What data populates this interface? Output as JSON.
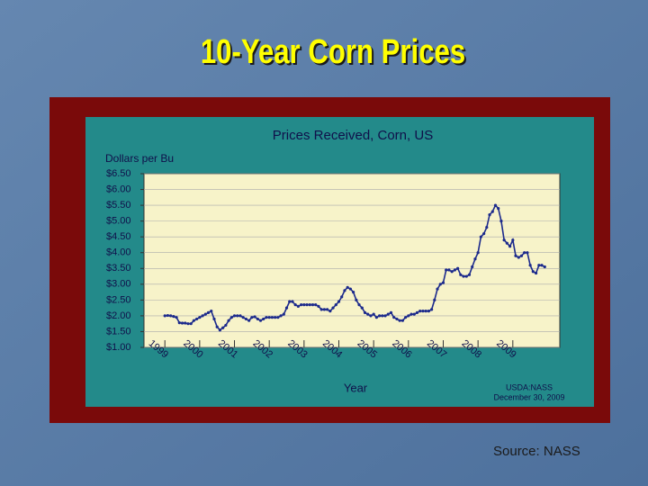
{
  "title": "10-Year Corn Prices",
  "source": "Source: NASS",
  "chart_data": {
    "type": "line",
    "title": "Prices Received, Corn, US",
    "y_label": "Dollars per Bu",
    "x_label": "Year",
    "notes": [
      "USDA:NASS",
      "December 30, 2009"
    ],
    "xlim": [
      1998.4,
      2010.35
    ],
    "xticks": [
      1999,
      2000,
      2001,
      2002,
      2003,
      2004,
      2005,
      2006,
      2007,
      2008,
      2009
    ],
    "ylim": [
      1,
      6.5
    ],
    "yticks": [
      {
        "value": 6.5,
        "label": "$6.50"
      },
      {
        "value": 6,
        "label": "$6.00"
      },
      {
        "value": 5.5,
        "label": "$5.50"
      },
      {
        "value": 5,
        "label": "$5.00"
      },
      {
        "value": 4.5,
        "label": "$4.50"
      },
      {
        "value": 4,
        "label": "$4.00"
      },
      {
        "value": 3.5,
        "label": "$3.50"
      },
      {
        "value": 3,
        "label": "$3.00"
      },
      {
        "value": 2.5,
        "label": "$2.50"
      },
      {
        "value": 2,
        "label": "$2.00"
      },
      {
        "value": 1.5,
        "label": "$1.50"
      },
      {
        "value": 1,
        "label": "$1.00"
      }
    ],
    "grid": true,
    "x": [
      1999,
      1999.083,
      1999.167,
      1999.25,
      1999.333,
      1999.417,
      1999.5,
      1999.583,
      1999.667,
      1999.75,
      1999.833,
      1999.917,
      2000,
      2000.083,
      2000.167,
      2000.25,
      2000.333,
      2000.417,
      2000.5,
      2000.583,
      2000.667,
      2000.75,
      2000.833,
      2000.917,
      2001,
      2001.083,
      2001.167,
      2001.25,
      2001.333,
      2001.417,
      2001.5,
      2001.583,
      2001.667,
      2001.75,
      2001.833,
      2001.917,
      2002,
      2002.083,
      2002.167,
      2002.25,
      2002.333,
      2002.417,
      2002.5,
      2002.583,
      2002.667,
      2002.75,
      2002.833,
      2002.917,
      2003,
      2003.083,
      2003.167,
      2003.25,
      2003.333,
      2003.417,
      2003.5,
      2003.583,
      2003.667,
      2003.75,
      2003.833,
      2003.917,
      2004,
      2004.083,
      2004.167,
      2004.25,
      2004.333,
      2004.417,
      2004.5,
      2004.583,
      2004.667,
      2004.75,
      2004.833,
      2004.917,
      2005,
      2005.083,
      2005.167,
      2005.25,
      2005.333,
      2005.417,
      2005.5,
      2005.583,
      2005.667,
      2005.75,
      2005.833,
      2005.917,
      2006,
      2006.083,
      2006.167,
      2006.25,
      2006.333,
      2006.417,
      2006.5,
      2006.583,
      2006.667,
      2006.75,
      2006.833,
      2006.917,
      2007,
      2007.083,
      2007.167,
      2007.25,
      2007.333,
      2007.417,
      2007.5,
      2007.583,
      2007.667,
      2007.75,
      2007.833,
      2007.917,
      2008,
      2008.083,
      2008.167,
      2008.25,
      2008.333,
      2008.417,
      2008.5,
      2008.583,
      2008.667,
      2008.75,
      2008.833,
      2008.917,
      2009,
      2009.083,
      2009.167,
      2009.25,
      2009.333,
      2009.417,
      2009.5,
      2009.583,
      2009.667,
      2009.75,
      2009.833,
      2009.917
    ],
    "series": [
      {
        "color": "#1c2a8c",
        "values": [
          2.0,
          2.01,
          2.0,
          1.98,
          1.95,
          1.78,
          1.77,
          1.77,
          1.75,
          1.75,
          1.85,
          1.9,
          1.95,
          2.0,
          2.05,
          2.1,
          2.15,
          1.9,
          1.65,
          1.55,
          1.62,
          1.7,
          1.85,
          1.95,
          2.0,
          2.0,
          2.0,
          1.95,
          1.9,
          1.85,
          1.95,
          1.97,
          1.9,
          1.85,
          1.9,
          1.95,
          1.95,
          1.95,
          1.95,
          1.95,
          2.0,
          2.05,
          2.25,
          2.45,
          2.45,
          2.35,
          2.3,
          2.35,
          2.35,
          2.35,
          2.35,
          2.35,
          2.35,
          2.3,
          2.2,
          2.2,
          2.2,
          2.15,
          2.25,
          2.35,
          2.45,
          2.6,
          2.8,
          2.9,
          2.85,
          2.75,
          2.5,
          2.35,
          2.25,
          2.1,
          2.05,
          2.0,
          2.05,
          1.95,
          2.0,
          2.0,
          2.0,
          2.05,
          2.1,
          1.95,
          1.9,
          1.85,
          1.85,
          1.95,
          2.0,
          2.05,
          2.05,
          2.1,
          2.15,
          2.15,
          2.15,
          2.15,
          2.2,
          2.5,
          2.85,
          3.0,
          3.05,
          3.45,
          3.45,
          3.4,
          3.45,
          3.5,
          3.3,
          3.25,
          3.25,
          3.3,
          3.55,
          3.8,
          4.0,
          4.5,
          4.6,
          4.8,
          5.2,
          5.3,
          5.5,
          5.4,
          5.0,
          4.4,
          4.3,
          4.2,
          4.4,
          3.9,
          3.85,
          3.9,
          4.0,
          4.0,
          3.6,
          3.4,
          3.35,
          3.6,
          3.6,
          3.55
        ]
      }
    ]
  }
}
